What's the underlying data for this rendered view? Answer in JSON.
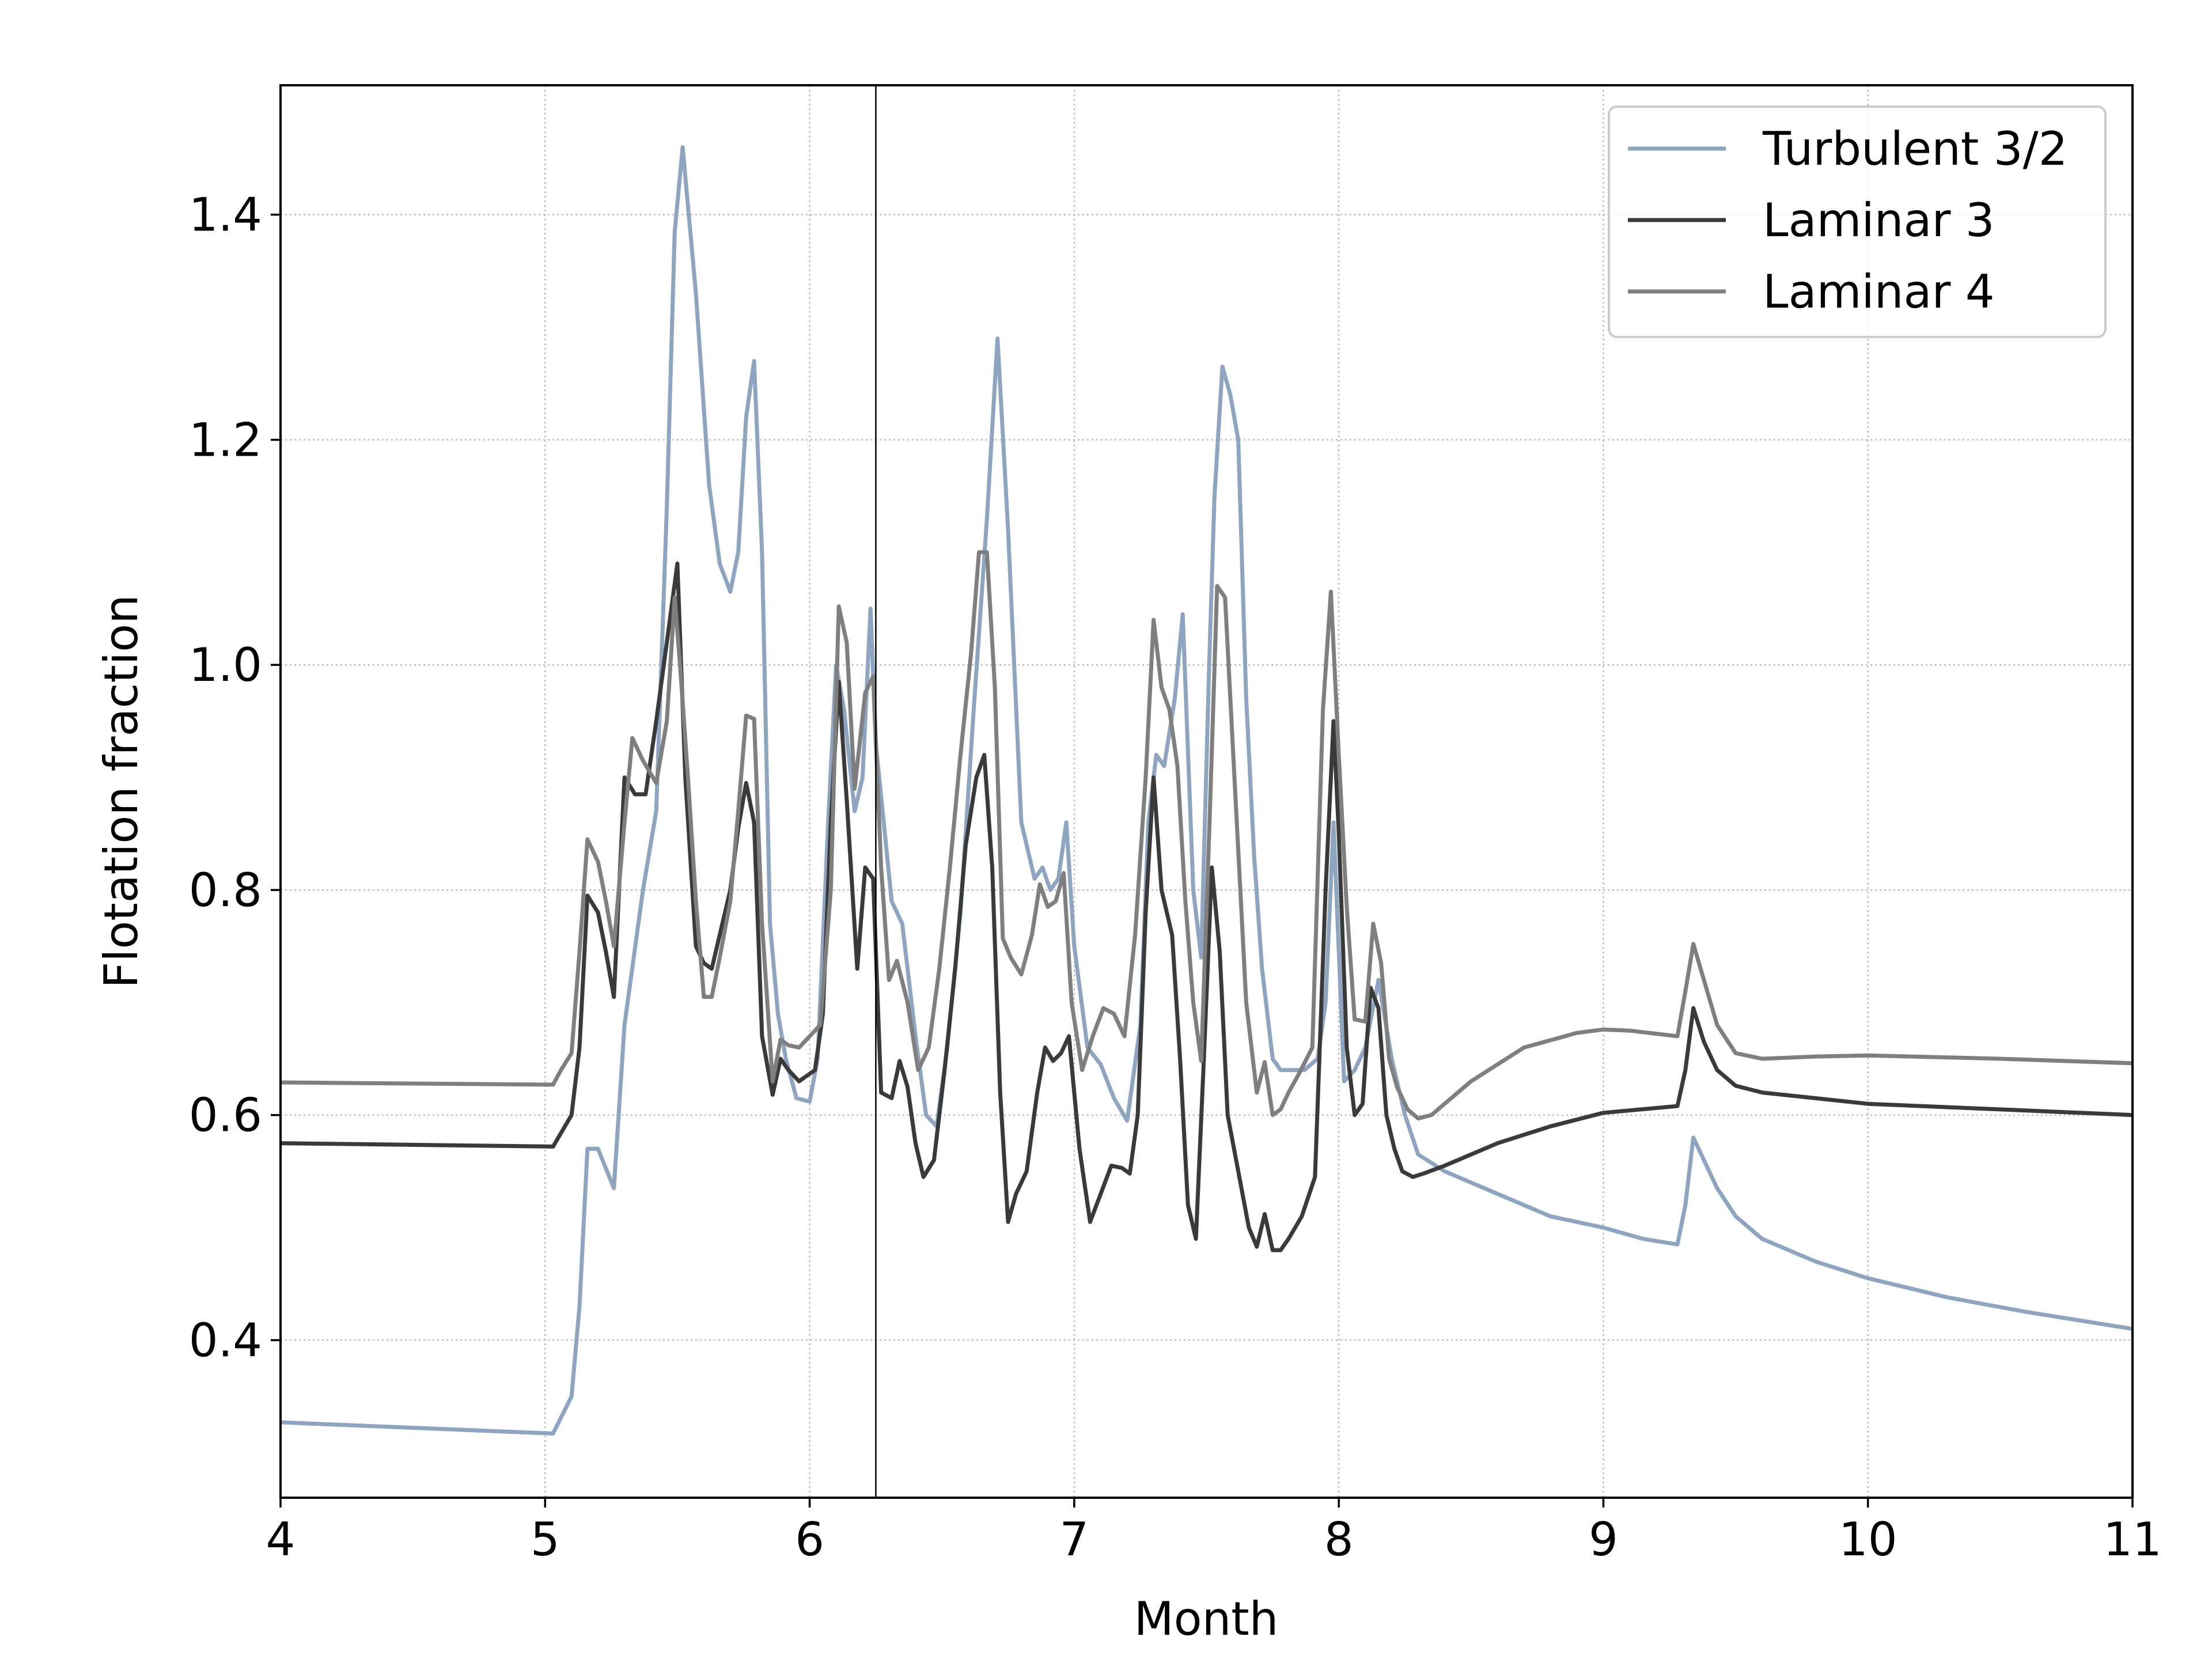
{
  "chart_data": {
    "type": "line",
    "xlabel": "Month",
    "ylabel": "Flotation fraction",
    "xlim": [
      4,
      11
    ],
    "ylim": [
      0.26,
      1.515
    ],
    "xticks": [
      4,
      5,
      6,
      7,
      8,
      9,
      10,
      11
    ],
    "yticks": [
      0.4,
      0.6,
      0.8,
      1.0,
      1.2,
      1.4
    ],
    "xtick_labels": [
      "4",
      "5",
      "6",
      "7",
      "8",
      "9",
      "10",
      "11"
    ],
    "ytick_labels": [
      "0.4",
      "0.6",
      "0.8",
      "1.0",
      "1.2",
      "1.4"
    ],
    "grid": true,
    "legend_position": "top-right",
    "vline_x": 6.25,
    "series": [
      {
        "name": "Turbulent 3/2",
        "color": "#8ea5c1",
        "x": [
          4.0,
          5.03,
          5.1,
          5.13,
          5.16,
          5.2,
          5.26,
          5.3,
          5.37,
          5.42,
          5.46,
          5.49,
          5.52,
          5.57,
          5.62,
          5.66,
          5.7,
          5.73,
          5.76,
          5.79,
          5.82,
          5.85,
          5.88,
          5.91,
          5.95,
          6.0,
          6.03,
          6.07,
          6.1,
          6.13,
          6.17,
          6.2,
          6.23,
          6.25,
          6.28,
          6.31,
          6.35,
          6.4,
          6.44,
          6.48,
          6.52,
          6.57,
          6.62,
          6.67,
          6.71,
          6.75,
          6.8,
          6.85,
          6.88,
          6.91,
          6.94,
          6.97,
          7.0,
          7.05,
          7.1,
          7.15,
          7.2,
          7.25,
          7.28,
          7.31,
          7.34,
          7.38,
          7.41,
          7.45,
          7.48,
          7.51,
          7.53,
          7.56,
          7.59,
          7.62,
          7.65,
          7.68,
          7.71,
          7.75,
          7.78,
          7.82,
          7.87,
          7.92,
          7.95,
          7.98,
          8.02,
          8.06,
          8.1,
          8.15,
          8.2,
          8.25,
          8.3,
          8.4,
          8.6,
          8.8,
          9.0,
          9.15,
          9.28,
          9.31,
          9.34,
          9.38,
          9.43,
          9.5,
          9.6,
          9.8,
          10.0,
          10.3,
          10.6,
          11.0
        ],
        "y": [
          0.327,
          0.317,
          0.35,
          0.43,
          0.57,
          0.57,
          0.535,
          0.68,
          0.8,
          0.87,
          1.14,
          1.385,
          1.46,
          1.33,
          1.16,
          1.09,
          1.065,
          1.1,
          1.22,
          1.27,
          1.1,
          0.77,
          0.69,
          0.65,
          0.615,
          0.612,
          0.65,
          0.86,
          1.0,
          0.96,
          0.87,
          0.9,
          1.05,
          0.93,
          0.86,
          0.79,
          0.77,
          0.67,
          0.6,
          0.59,
          0.66,
          0.78,
          0.96,
          1.13,
          1.29,
          1.12,
          0.86,
          0.81,
          0.82,
          0.8,
          0.81,
          0.86,
          0.75,
          0.66,
          0.645,
          0.615,
          0.595,
          0.68,
          0.86,
          0.92,
          0.91,
          0.97,
          1.045,
          0.8,
          0.74,
          1.0,
          1.15,
          1.265,
          1.24,
          1.2,
          0.97,
          0.83,
          0.73,
          0.65,
          0.64,
          0.64,
          0.64,
          0.65,
          0.7,
          0.86,
          0.63,
          0.64,
          0.66,
          0.72,
          0.65,
          0.6,
          0.565,
          0.55,
          0.53,
          0.51,
          0.5,
          0.49,
          0.485,
          0.52,
          0.58,
          0.56,
          0.535,
          0.51,
          0.49,
          0.47,
          0.455,
          0.438,
          0.425,
          0.41
        ]
      },
      {
        "name": "Laminar 3",
        "color": "#3a3a3a",
        "x": [
          4.0,
          5.03,
          5.1,
          5.13,
          5.16,
          5.2,
          5.23,
          5.26,
          5.3,
          5.34,
          5.38,
          5.42,
          5.46,
          5.5,
          5.53,
          5.57,
          5.6,
          5.63,
          5.66,
          5.7,
          5.73,
          5.76,
          5.79,
          5.82,
          5.86,
          5.89,
          5.92,
          5.96,
          5.99,
          6.02,
          6.05,
          6.08,
          6.11,
          6.14,
          6.18,
          6.21,
          6.24,
          6.27,
          6.31,
          6.34,
          6.37,
          6.4,
          6.43,
          6.47,
          6.51,
          6.55,
          6.59,
          6.63,
          6.66,
          6.69,
          6.72,
          6.75,
          6.78,
          6.82,
          6.86,
          6.89,
          6.92,
          6.95,
          6.98,
          7.02,
          7.06,
          7.1,
          7.14,
          7.18,
          7.21,
          7.24,
          7.27,
          7.3,
          7.33,
          7.37,
          7.4,
          7.43,
          7.46,
          7.49,
          7.52,
          7.55,
          7.58,
          7.62,
          7.66,
          7.69,
          7.72,
          7.75,
          7.78,
          7.81,
          7.86,
          7.91,
          7.95,
          7.98,
          8.0,
          8.03,
          8.06,
          8.09,
          8.12,
          8.15,
          8.18,
          8.21,
          8.24,
          8.28,
          8.32,
          8.4,
          8.6,
          8.8,
          9.0,
          9.28,
          9.31,
          9.34,
          9.38,
          9.43,
          9.5,
          9.6,
          9.8,
          10.0,
          10.5,
          11.0
        ],
        "y": [
          0.575,
          0.572,
          0.6,
          0.66,
          0.795,
          0.78,
          0.745,
          0.705,
          0.9,
          0.885,
          0.885,
          0.95,
          1.02,
          1.09,
          0.9,
          0.75,
          0.735,
          0.73,
          0.76,
          0.8,
          0.855,
          0.895,
          0.86,
          0.67,
          0.618,
          0.65,
          0.64,
          0.63,
          0.635,
          0.64,
          0.69,
          0.86,
          0.985,
          0.88,
          0.73,
          0.82,
          0.81,
          0.62,
          0.615,
          0.648,
          0.625,
          0.575,
          0.545,
          0.56,
          0.64,
          0.73,
          0.84,
          0.9,
          0.92,
          0.82,
          0.62,
          0.505,
          0.53,
          0.55,
          0.62,
          0.66,
          0.648,
          0.655,
          0.67,
          0.57,
          0.505,
          0.53,
          0.555,
          0.553,
          0.548,
          0.6,
          0.78,
          0.9,
          0.8,
          0.76,
          0.65,
          0.52,
          0.49,
          0.65,
          0.82,
          0.745,
          0.6,
          0.55,
          0.5,
          0.483,
          0.512,
          0.48,
          0.48,
          0.49,
          0.51,
          0.545,
          0.8,
          0.95,
          0.85,
          0.66,
          0.6,
          0.61,
          0.713,
          0.695,
          0.6,
          0.57,
          0.55,
          0.545,
          0.548,
          0.555,
          0.575,
          0.59,
          0.602,
          0.608,
          0.64,
          0.695,
          0.665,
          0.64,
          0.626,
          0.62,
          0.615,
          0.61,
          0.605,
          0.6
        ]
      },
      {
        "name": "Laminar 4",
        "color": "#7f7f7f",
        "x": [
          4.0,
          5.03,
          5.06,
          5.1,
          5.13,
          5.16,
          5.2,
          5.23,
          5.26,
          5.3,
          5.33,
          5.37,
          5.42,
          5.46,
          5.49,
          5.51,
          5.54,
          5.57,
          5.6,
          5.63,
          5.66,
          5.7,
          5.73,
          5.76,
          5.79,
          5.82,
          5.86,
          5.89,
          5.92,
          5.96,
          6.0,
          6.04,
          6.08,
          6.11,
          6.14,
          6.17,
          6.21,
          6.24,
          6.27,
          6.3,
          6.33,
          6.37,
          6.41,
          6.45,
          6.49,
          6.53,
          6.57,
          6.61,
          6.64,
          6.67,
          6.7,
          6.73,
          6.76,
          6.8,
          6.84,
          6.87,
          6.9,
          6.93,
          6.96,
          6.99,
          7.03,
          7.07,
          7.11,
          7.15,
          7.19,
          7.23,
          7.27,
          7.3,
          7.33,
          7.36,
          7.39,
          7.42,
          7.45,
          7.48,
          7.51,
          7.54,
          7.57,
          7.61,
          7.65,
          7.69,
          7.72,
          7.75,
          7.78,
          7.81,
          7.85,
          7.9,
          7.94,
          7.97,
          8.0,
          8.03,
          8.06,
          8.1,
          8.13,
          8.16,
          8.19,
          8.22,
          8.26,
          8.3,
          8.35,
          8.5,
          8.7,
          8.9,
          9.0,
          9.1,
          9.28,
          9.31,
          9.34,
          9.38,
          9.43,
          9.5,
          9.6,
          9.8,
          10.0,
          10.5,
          11.0
        ],
        "y": [
          0.629,
          0.627,
          0.64,
          0.655,
          0.745,
          0.845,
          0.825,
          0.79,
          0.75,
          0.86,
          0.935,
          0.915,
          0.895,
          0.95,
          1.06,
          1.0,
          0.9,
          0.79,
          0.705,
          0.705,
          0.74,
          0.79,
          0.87,
          0.955,
          0.952,
          0.77,
          0.63,
          0.667,
          0.662,
          0.66,
          0.67,
          0.68,
          0.8,
          1.052,
          1.02,
          0.89,
          0.975,
          0.99,
          0.82,
          0.72,
          0.737,
          0.7,
          0.64,
          0.66,
          0.73,
          0.82,
          0.92,
          1.01,
          1.1,
          1.1,
          0.98,
          0.757,
          0.74,
          0.725,
          0.76,
          0.805,
          0.785,
          0.79,
          0.815,
          0.7,
          0.64,
          0.67,
          0.695,
          0.69,
          0.67,
          0.76,
          0.9,
          1.04,
          0.98,
          0.96,
          0.91,
          0.79,
          0.7,
          0.648,
          0.85,
          1.07,
          1.06,
          0.88,
          0.7,
          0.62,
          0.647,
          0.6,
          0.605,
          0.62,
          0.637,
          0.66,
          0.96,
          1.065,
          0.92,
          0.785,
          0.685,
          0.683,
          0.77,
          0.735,
          0.65,
          0.625,
          0.605,
          0.597,
          0.6,
          0.63,
          0.66,
          0.673,
          0.676,
          0.675,
          0.67,
          0.71,
          0.752,
          0.72,
          0.68,
          0.655,
          0.65,
          0.652,
          0.653,
          0.65,
          0.646
        ]
      }
    ]
  }
}
